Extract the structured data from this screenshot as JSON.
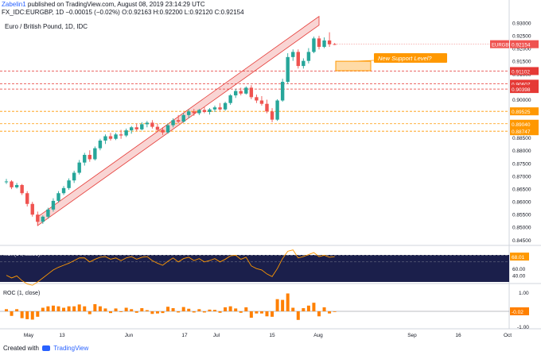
{
  "header": {
    "author": "Zabelin1",
    "published": "published on TradingView.com, August 08, 2019 23:14:29 UTC",
    "symbol_line": "FX_IDC:EURGBP, 1D",
    "change": "−0.00015 (−0.02%)",
    "ohlc": "O:0.92163 H:0.92200 L:0.92120 C:0.92154"
  },
  "chart_title": "Euro / British Pound, 1D, IDC",
  "annotation": "New Support Level?",
  "price_tag": {
    "symbol": "EURGBP",
    "value": "0.92154"
  },
  "level_labels": [
    "0.91102",
    "0.90607",
    "0.90398",
    "0.89525",
    "0.89040",
    "0.88747"
  ],
  "price_axis": [
    "0.93000",
    "0.92500",
    "0.92000",
    "0.91500",
    "0.91000",
    "0.90500",
    "0.90000",
    "0.89500",
    "0.89000",
    "0.88500",
    "0.88000",
    "0.87500",
    "0.87000",
    "0.86500",
    "0.86000",
    "0.85500",
    "0.85000",
    "0.84500"
  ],
  "time_axis": [
    "May",
    "13",
    "Jun",
    "17",
    "Jul",
    "15",
    "Aug",
    "Sep",
    "16",
    "Oct"
  ],
  "rsi": {
    "title": "RSI (14, close)",
    "value_tag": "68.01",
    "axis": [
      "60.00",
      "40.00"
    ]
  },
  "roc": {
    "title": "ROC (1, close)",
    "value_tag": "-0.02",
    "axis": [
      "1.00",
      "-1.00"
    ]
  },
  "footer": {
    "created_with": "Created with",
    "brand": "TradingView"
  },
  "colors": {
    "up": "#26a69a",
    "down": "#ef5350",
    "resistance": "#e53935",
    "support": "#ff9800",
    "channel": "#e53935",
    "rsi_bg": "#1b1f4b",
    "roc_bar": "#ff8000"
  },
  "chart_data": {
    "type": "candlestick",
    "ylim": [
      0.844,
      0.932
    ],
    "candles": [
      [
        0.8675,
        0.8688,
        0.8668,
        0.8678
      ],
      [
        0.8678,
        0.8683,
        0.8648,
        0.8655
      ],
      [
        0.8655,
        0.8672,
        0.865,
        0.8664
      ],
      [
        0.8664,
        0.8668,
        0.8625,
        0.8632
      ],
      [
        0.8632,
        0.864,
        0.858,
        0.859
      ],
      [
        0.859,
        0.8598,
        0.854,
        0.8548
      ],
      [
        0.8548,
        0.856,
        0.8505,
        0.852
      ],
      [
        0.852,
        0.8545,
        0.8512,
        0.854
      ],
      [
        0.854,
        0.8575,
        0.8532,
        0.8568
      ],
      [
        0.8568,
        0.8612,
        0.856,
        0.8602
      ],
      [
        0.8602,
        0.864,
        0.8595,
        0.8632
      ],
      [
        0.8632,
        0.866,
        0.8625,
        0.8652
      ],
      [
        0.8652,
        0.869,
        0.8645,
        0.8682
      ],
      [
        0.8682,
        0.872,
        0.8672,
        0.8712
      ],
      [
        0.8712,
        0.8762,
        0.8705,
        0.8752
      ],
      [
        0.8752,
        0.879,
        0.874,
        0.8782
      ],
      [
        0.8782,
        0.88,
        0.8755,
        0.8765
      ],
      [
        0.8765,
        0.8815,
        0.876,
        0.8808
      ],
      [
        0.8808,
        0.8845,
        0.88,
        0.8838
      ],
      [
        0.8838,
        0.8862,
        0.8825,
        0.8855
      ],
      [
        0.8855,
        0.8868,
        0.8838,
        0.8845
      ],
      [
        0.8845,
        0.8868,
        0.884,
        0.8862
      ],
      [
        0.8862,
        0.888,
        0.8845,
        0.8858
      ],
      [
        0.8858,
        0.8885,
        0.8852,
        0.8878
      ],
      [
        0.8878,
        0.8895,
        0.8865,
        0.889
      ],
      [
        0.889,
        0.8905,
        0.8875,
        0.8882
      ],
      [
        0.8882,
        0.891,
        0.8878,
        0.8902
      ],
      [
        0.8902,
        0.8915,
        0.889,
        0.8908
      ],
      [
        0.8908,
        0.8918,
        0.8885,
        0.8892
      ],
      [
        0.8892,
        0.8905,
        0.8872,
        0.888
      ],
      [
        0.888,
        0.889,
        0.886,
        0.887
      ],
      [
        0.887,
        0.8905,
        0.8865,
        0.8898
      ],
      [
        0.8898,
        0.8925,
        0.889,
        0.8918
      ],
      [
        0.8918,
        0.8938,
        0.8905,
        0.8912
      ],
      [
        0.8912,
        0.8945,
        0.8908,
        0.8938
      ],
      [
        0.8938,
        0.896,
        0.8925,
        0.8952
      ],
      [
        0.8952,
        0.8962,
        0.8935,
        0.8945
      ],
      [
        0.8945,
        0.8962,
        0.8938,
        0.8958
      ],
      [
        0.8958,
        0.897,
        0.8945,
        0.895
      ],
      [
        0.895,
        0.8965,
        0.894,
        0.896
      ],
      [
        0.896,
        0.8975,
        0.895,
        0.8968
      ],
      [
        0.8968,
        0.8985,
        0.8955,
        0.896
      ],
      [
        0.896,
        0.899,
        0.8955,
        0.8985
      ],
      [
        0.8985,
        0.902,
        0.8978,
        0.9015
      ],
      [
        0.9015,
        0.904,
        0.9005,
        0.9032
      ],
      [
        0.9032,
        0.9045,
        0.9015,
        0.9022
      ],
      [
        0.9022,
        0.905,
        0.9018,
        0.9045
      ],
      [
        0.9045,
        0.9055,
        0.9,
        0.9008
      ],
      [
        0.9008,
        0.9018,
        0.8985,
        0.8995
      ],
      [
        0.8995,
        0.9012,
        0.8975,
        0.8982
      ],
      [
        0.8982,
        0.8998,
        0.8945,
        0.8952
      ],
      [
        0.8952,
        0.8965,
        0.891,
        0.892
      ],
      [
        0.892,
        0.9,
        0.8915,
        0.8995
      ],
      [
        0.8995,
        0.908,
        0.899,
        0.9068
      ],
      [
        0.9068,
        0.918,
        0.906,
        0.9165
      ],
      [
        0.9165,
        0.9195,
        0.915,
        0.9185
      ],
      [
        0.9185,
        0.9195,
        0.912,
        0.913
      ],
      [
        0.913,
        0.916,
        0.912,
        0.915
      ],
      [
        0.915,
        0.92,
        0.914,
        0.9185
      ],
      [
        0.9185,
        0.9245,
        0.918,
        0.9238
      ],
      [
        0.9238,
        0.9248,
        0.9195,
        0.9205
      ],
      [
        0.9205,
        0.9242,
        0.92,
        0.923
      ],
      [
        0.923,
        0.9262,
        0.9205,
        0.9215
      ],
      [
        0.9216,
        0.922,
        0.9212,
        0.9215
      ]
    ],
    "rsi": [
      40,
      36,
      39,
      32,
      27,
      25,
      30,
      36,
      42,
      48,
      52,
      55,
      58,
      62,
      66,
      66,
      60,
      64,
      67,
      68,
      64,
      66,
      62,
      66,
      68,
      64,
      67,
      68,
      62,
      58,
      55,
      61,
      66,
      60,
      65,
      67,
      62,
      65,
      60,
      62,
      65,
      60,
      64,
      69,
      70,
      64,
      67,
      54,
      50,
      48,
      42,
      38,
      50,
      65,
      76,
      78,
      66,
      68,
      71,
      74,
      68,
      70,
      67,
      68
    ],
    "roc": [
      0.15,
      -0.32,
      0.15,
      -0.48,
      -0.55,
      -0.58,
      -0.38,
      0.25,
      0.35,
      0.4,
      0.35,
      0.25,
      0.35,
      0.35,
      0.48,
      0.35,
      -0.2,
      0.5,
      0.35,
      0.2,
      -0.12,
      0.2,
      -0.05,
      0.25,
      0.15,
      -0.1,
      0.22,
      0.08,
      -0.18,
      -0.15,
      -0.12,
      0.32,
      0.22,
      -0.08,
      0.3,
      0.18,
      -0.08,
      0.15,
      -0.08,
      0.12,
      0.1,
      -0.1,
      0.28,
      0.35,
      0.2,
      -0.1,
      0.28,
      -0.45,
      -0.15,
      -0.15,
      -0.35,
      -0.38,
      0.85,
      0.8,
      1.25,
      0.25,
      -0.6,
      0.22,
      0.4,
      0.6,
      -0.35,
      0.28,
      -0.15,
      -0.02
    ],
    "support_resistance": [
      {
        "value": 0.91102,
        "color": "red"
      },
      {
        "value": 0.90607,
        "color": "red"
      },
      {
        "value": 0.90398,
        "color": "red"
      },
      {
        "value": 0.89525,
        "color": "orange"
      },
      {
        "value": 0.8904,
        "color": "orange"
      },
      {
        "value": 0.88747,
        "color": "orange"
      }
    ]
  }
}
